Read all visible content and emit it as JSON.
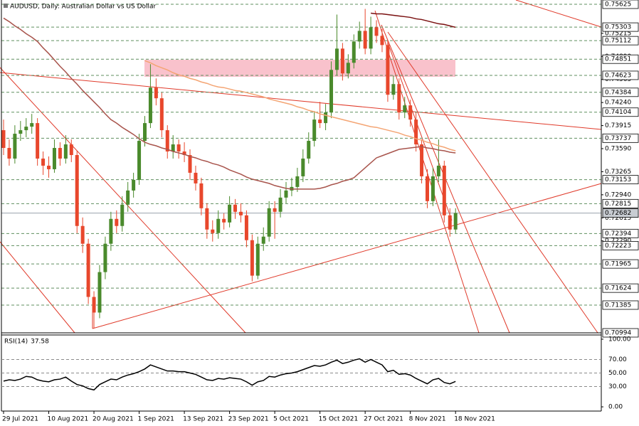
{
  "chart_data": {
    "type": "candlestick",
    "title": "AUDUSD, Daily:  Australian Dollar vs US Dollar",
    "categories": [
      "29 Jul 2021",
      null,
      null,
      null,
      null,
      null,
      null,
      null,
      "10 Aug 2021",
      null,
      null,
      null,
      null,
      null,
      null,
      null,
      "20 Aug 2021",
      null,
      null,
      null,
      null,
      null,
      null,
      null,
      "1 Sep 2021",
      null,
      null,
      null,
      null,
      null,
      null,
      null,
      "13 Sep 2021",
      null,
      null,
      null,
      null,
      null,
      null,
      null,
      "23 Sep 2021",
      null,
      null,
      null,
      null,
      null,
      null,
      null,
      "5 Oct 2021",
      null,
      null,
      null,
      null,
      null,
      null,
      null,
      "15 Oct 2021",
      null,
      null,
      null,
      null,
      null,
      null,
      null,
      "27 Oct 2021",
      null,
      null,
      null,
      null,
      null,
      null,
      null,
      "8 Nov 2021",
      null,
      null,
      null,
      null,
      null,
      null,
      null,
      "18 Nov 2021"
    ],
    "ohlc": [
      [
        0.7385,
        0.74,
        0.735,
        0.736
      ],
      [
        0.736,
        0.7372,
        0.7335,
        0.7345
      ],
      [
        0.7345,
        0.7392,
        0.7338,
        0.738
      ],
      [
        0.738,
        0.7398,
        0.737,
        0.7385
      ],
      [
        0.7385,
        0.7402,
        0.7375,
        0.739
      ],
      [
        0.739,
        0.7408,
        0.738,
        0.7395
      ],
      [
        0.7395,
        0.7402,
        0.7335,
        0.7345
      ],
      [
        0.7345,
        0.7355,
        0.7322,
        0.7335
      ],
      [
        0.7335,
        0.7348,
        0.7318,
        0.733
      ],
      [
        0.733,
        0.7372,
        0.7325,
        0.736
      ],
      [
        0.736,
        0.7368,
        0.7335,
        0.7345
      ],
      [
        0.7345,
        0.7378,
        0.7338,
        0.7365
      ],
      [
        0.7365,
        0.7372,
        0.734,
        0.735
      ],
      [
        0.735,
        0.7356,
        0.724,
        0.725
      ],
      [
        0.725,
        0.7262,
        0.7212,
        0.7225
      ],
      [
        0.7225,
        0.7232,
        0.714,
        0.715
      ],
      [
        0.715,
        0.7158,
        0.7106,
        0.7128
      ],
      [
        0.7128,
        0.7195,
        0.712,
        0.7185
      ],
      [
        0.7185,
        0.7235,
        0.7175,
        0.7225
      ],
      [
        0.7225,
        0.727,
        0.7215,
        0.726
      ],
      [
        0.726,
        0.7272,
        0.724,
        0.725
      ],
      [
        0.725,
        0.7292,
        0.7242,
        0.728
      ],
      [
        0.728,
        0.7312,
        0.727,
        0.73
      ],
      [
        0.73,
        0.7325,
        0.729,
        0.7315
      ],
      [
        0.7315,
        0.738,
        0.7308,
        0.737
      ],
      [
        0.737,
        0.7405,
        0.7362,
        0.7395
      ],
      [
        0.7395,
        0.7478,
        0.7388,
        0.7445
      ],
      [
        0.7445,
        0.7458,
        0.742,
        0.743
      ],
      [
        0.743,
        0.7438,
        0.7375,
        0.7385
      ],
      [
        0.7385,
        0.7392,
        0.7345,
        0.7355
      ],
      [
        0.7355,
        0.7378,
        0.7345,
        0.7365
      ],
      [
        0.7365,
        0.7372,
        0.7345,
        0.7355
      ],
      [
        0.7355,
        0.7368,
        0.734,
        0.735
      ],
      [
        0.735,
        0.7358,
        0.7315,
        0.7325
      ],
      [
        0.7325,
        0.7335,
        0.73,
        0.731
      ],
      [
        0.731,
        0.7318,
        0.7265,
        0.7275
      ],
      [
        0.7275,
        0.7282,
        0.7232,
        0.7245
      ],
      [
        0.7245,
        0.7258,
        0.7228,
        0.724
      ],
      [
        0.724,
        0.7272,
        0.7232,
        0.726
      ],
      [
        0.726,
        0.7268,
        0.7245,
        0.7255
      ],
      [
        0.7255,
        0.7292,
        0.7248,
        0.728
      ],
      [
        0.728,
        0.7288,
        0.726,
        0.727
      ],
      [
        0.727,
        0.7282,
        0.7255,
        0.7265
      ],
      [
        0.7265,
        0.7272,
        0.722,
        0.723
      ],
      [
        0.723,
        0.7238,
        0.7172,
        0.718
      ],
      [
        0.718,
        0.7235,
        0.7175,
        0.7225
      ],
      [
        0.7225,
        0.7248,
        0.7215,
        0.7235
      ],
      [
        0.7235,
        0.7285,
        0.7228,
        0.7275
      ],
      [
        0.7275,
        0.7285,
        0.7232,
        0.727
      ],
      [
        0.727,
        0.7302,
        0.7262,
        0.729
      ],
      [
        0.729,
        0.7312,
        0.7282,
        0.73
      ],
      [
        0.73,
        0.7318,
        0.7292,
        0.7305
      ],
      [
        0.7305,
        0.7332,
        0.7298,
        0.732
      ],
      [
        0.732,
        0.7358,
        0.7312,
        0.7345
      ],
      [
        0.7345,
        0.7382,
        0.7338,
        0.737
      ],
      [
        0.737,
        0.7412,
        0.7362,
        0.74
      ],
      [
        0.74,
        0.7425,
        0.7388,
        0.7395
      ],
      [
        0.7395,
        0.7422,
        0.7385,
        0.741
      ],
      [
        0.741,
        0.7482,
        0.7402,
        0.747
      ],
      [
        0.747,
        0.7548,
        0.7462,
        0.75
      ],
      [
        0.75,
        0.7508,
        0.7455,
        0.7465
      ],
      [
        0.7465,
        0.7492,
        0.7458,
        0.748
      ],
      [
        0.748,
        0.752,
        0.7472,
        0.751
      ],
      [
        0.751,
        0.7538,
        0.75,
        0.7525
      ],
      [
        0.7525,
        0.7556,
        0.7492,
        0.75
      ],
      [
        0.75,
        0.7545,
        0.7492,
        0.753
      ],
      [
        0.753,
        0.754,
        0.7508,
        0.7518
      ],
      [
        0.7518,
        0.7528,
        0.7495,
        0.7505
      ],
      [
        0.7505,
        0.7512,
        0.7425,
        0.7435
      ],
      [
        0.7435,
        0.7462,
        0.7428,
        0.745
      ],
      [
        0.745,
        0.7458,
        0.74,
        0.741
      ],
      [
        0.741,
        0.7432,
        0.7402,
        0.742
      ],
      [
        0.742,
        0.7428,
        0.739,
        0.74
      ],
      [
        0.74,
        0.741,
        0.7355,
        0.7365
      ],
      [
        0.7365,
        0.7372,
        0.731,
        0.732
      ],
      [
        0.732,
        0.733,
        0.7275,
        0.7285
      ],
      [
        0.7285,
        0.7332,
        0.7278,
        0.732
      ],
      [
        0.732,
        0.7372,
        0.7312,
        0.7335
      ],
      [
        0.7335,
        0.7342,
        0.7255,
        0.7265
      ],
      [
        0.7265,
        0.7275,
        0.7235,
        0.7245
      ],
      [
        0.7245,
        0.7275,
        0.724,
        0.72682
      ]
    ],
    "up_color": "#4a8a2c",
    "down_color": "#e8472c",
    "lines": [
      {
        "color": "#a8544c",
        "values": [
          0.7543,
          0.7538,
          0.7532,
          0.7527,
          0.7521,
          0.7516,
          0.751,
          0.7501,
          0.7493,
          0.7484,
          0.7475,
          0.7467,
          0.7458,
          0.745,
          0.7441,
          0.7433,
          0.7425,
          0.7417,
          0.7408,
          0.74,
          0.7395,
          0.7389,
          0.7384,
          0.7379,
          0.7373,
          0.7368,
          0.7365,
          0.7363,
          0.736,
          0.7358,
          0.7355,
          0.7353,
          0.7351,
          0.7348,
          0.7346,
          0.7343,
          0.7341,
          0.7338,
          0.7336,
          0.7333,
          0.7329,
          0.7326,
          0.7323,
          0.7319,
          0.7316,
          0.7314,
          0.7312,
          0.731,
          0.7307,
          0.7305,
          0.7303,
          0.7302,
          0.7302,
          0.7302,
          0.7302,
          0.7302,
          0.7303,
          0.7305,
          0.7308,
          0.731,
          0.7313,
          0.7315,
          0.7318,
          0.7325,
          0.7332,
          0.7339,
          0.7346,
          0.7349,
          0.7352,
          0.7355,
          0.7358,
          0.7359,
          0.736,
          0.7361,
          0.7362,
          0.736,
          0.7359,
          0.7357,
          0.7356,
          0.7354,
          0.7353
        ]
      },
      {
        "color": "#f4a574",
        "values": [
          null,
          null,
          null,
          null,
          null,
          null,
          null,
          null,
          null,
          null,
          null,
          null,
          null,
          null,
          null,
          null,
          null,
          null,
          null,
          null,
          null,
          null,
          null,
          null,
          null,
          0.7483,
          0.748,
          0.7476,
          0.7473,
          0.747,
          0.7466,
          0.7463,
          0.7461,
          0.7458,
          0.7456,
          0.7453,
          0.7451,
          0.7448,
          0.7446,
          0.7445,
          0.7443,
          0.7441,
          0.744,
          0.7438,
          0.7436,
          0.7434,
          0.7432,
          0.7429,
          0.7427,
          0.7425,
          0.7423,
          0.7421,
          0.7418,
          0.7416,
          0.7413,
          0.7411,
          0.7408,
          0.7406,
          0.7404,
          0.7402,
          0.74,
          0.7398,
          0.7396,
          0.7394,
          0.7392,
          0.739,
          0.7389,
          0.7387,
          0.7385,
          0.7383,
          0.7381,
          0.7378,
          0.7376,
          0.7373,
          0.7371,
          0.7368,
          0.7366,
          0.7363,
          0.7361,
          0.7358,
          0.7356
        ]
      },
      {
        "color": "#7a1010",
        "values": [
          null,
          null,
          null,
          null,
          null,
          null,
          null,
          null,
          null,
          null,
          null,
          null,
          null,
          null,
          null,
          null,
          null,
          null,
          null,
          null,
          null,
          null,
          null,
          null,
          null,
          null,
          null,
          null,
          null,
          null,
          null,
          null,
          null,
          null,
          null,
          null,
          null,
          null,
          null,
          null,
          null,
          null,
          null,
          null,
          null,
          null,
          null,
          null,
          null,
          null,
          null,
          null,
          null,
          null,
          null,
          null,
          null,
          null,
          null,
          null,
          null,
          null,
          null,
          null,
          null,
          0.755,
          0.7549,
          0.7549,
          0.7548,
          0.7547,
          0.7546,
          0.7545,
          0.7544,
          0.7542,
          0.7541,
          0.7539,
          0.7537,
          0.7535,
          0.7534,
          0.7532,
          0.753
        ]
      }
    ],
    "ylim": [
      0.70994,
      0.75685
    ],
    "yticks": [
      0.75215,
      {
        "value": 0.7489,
        "label": "0.74890"
      },
      0.74565,
      {
        "value": 0.7424,
        "label": "0.74240"
      },
      0.73915,
      {
        "value": 0.7359,
        "label": "0.73590"
      },
      0.73265,
      {
        "value": 0.7294,
        "label": "0.72940"
      },
      0.72615,
      {
        "value": 0.7229,
        "label": "0.72290"
      }
    ],
    "levels": [
      0.75625,
      0.75303,
      0.75112,
      0.74851,
      0.74623,
      0.74384,
      0.74104,
      0.73737,
      0.73153,
      0.72815,
      0.72394,
      0.72223,
      0.71965,
      0.71624,
      0.71385,
      0.70994
    ],
    "last_price": 0.72682,
    "indicator": {
      "type": "line",
      "title": "RSI(14)",
      "color": "#000000",
      "values": [
        38,
        40,
        39,
        41,
        45,
        44,
        40,
        38,
        37,
        40,
        41,
        44,
        38,
        33,
        31,
        27,
        25,
        33,
        37,
        41,
        40,
        44,
        47,
        49,
        52,
        56,
        62,
        59,
        56,
        53,
        53,
        52,
        52,
        50,
        48,
        44,
        40,
        39,
        42,
        41,
        43,
        42,
        41,
        37,
        32,
        37,
        39,
        45,
        44,
        47,
        49,
        50,
        52,
        55,
        58,
        61,
        60,
        62,
        66,
        69,
        64,
        66,
        69,
        71,
        66,
        70,
        66,
        62,
        52,
        54,
        48,
        49,
        47,
        42,
        38,
        34,
        40,
        42,
        36,
        34,
        37.58
      ],
      "ylim": [
        -6.25,
        106.25
      ],
      "yticks": [
        {
          "value": 100,
          "label": "100.00"
        },
        {
          "value": 70,
          "label": "70.00"
        },
        {
          "value": 50,
          "label": "50.00"
        },
        {
          "value": 30,
          "label": "30.00"
        },
        {
          "value": 0,
          "label": "0.00"
        }
      ]
    }
  }
}
